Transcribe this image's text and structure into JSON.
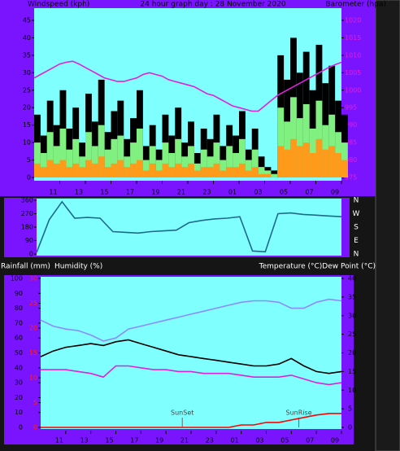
{
  "chart_data": [
    {
      "type": "bar",
      "title": "24 hour graph day : 28 November 2020",
      "ylabel": "Windspeed (kph)",
      "y2label": "Barometer (hpa)",
      "x": [
        0,
        0.5,
        1,
        1.5,
        2,
        2.5,
        3,
        3.5,
        4,
        4.5,
        5,
        5.5,
        6,
        6.5,
        7,
        7.5,
        8,
        8.5,
        9,
        9.5,
        10,
        10.5,
        11,
        11.5,
        12,
        12.5,
        13,
        13.5,
        14,
        14.5,
        15,
        15.5,
        16,
        16.5,
        17,
        17.5,
        18,
        18.5,
        19,
        19.5,
        20,
        20.5,
        21,
        21.5,
        22,
        22.5,
        23,
        23.5,
        24
      ],
      "xlim": [
        0,
        24
      ],
      "xticks": [
        {
          "value": 2,
          "label": "11"
        },
        {
          "value": 4,
          "label": "13"
        },
        {
          "value": 6,
          "label": "15"
        },
        {
          "value": 8,
          "label": "17"
        },
        {
          "value": 10,
          "label": "19"
        },
        {
          "value": 12,
          "label": "21"
        },
        {
          "value": 14,
          "label": "23"
        },
        {
          "value": 16,
          "label": "01"
        },
        {
          "value": 18,
          "label": "03"
        },
        {
          "value": 20,
          "label": "05"
        },
        {
          "value": 22,
          "label": "07"
        },
        {
          "value": 24,
          "label": "09"
        }
      ],
      "ylim": [
        0,
        45
      ],
      "yticks": [
        0,
        5,
        10,
        15,
        20,
        25,
        30,
        35,
        40,
        45
      ],
      "y2lim": [
        975,
        1020
      ],
      "y2ticks": [
        975,
        980,
        985,
        990,
        995,
        1000,
        1005,
        1010,
        1015,
        1020
      ],
      "series": [
        {
          "color": "#000000",
          "values": [
            18,
            12,
            22,
            15,
            25,
            14,
            20,
            10,
            24,
            16,
            28,
            13,
            19,
            22,
            11,
            17,
            25,
            9,
            15,
            8,
            18,
            12,
            20,
            10,
            16,
            7,
            14,
            11,
            18,
            9,
            15,
            12,
            19,
            8,
            14,
            6,
            3,
            2,
            35,
            28,
            40,
            30,
            36,
            25,
            38,
            27,
            32,
            22,
            18
          ]
        },
        {
          "color": "#80f080",
          "values": [
            10,
            7,
            13,
            9,
            14,
            8,
            11,
            6,
            13,
            9,
            15,
            8,
            11,
            12,
            6,
            10,
            14,
            5,
            9,
            5,
            10,
            7,
            11,
            6,
            9,
            4,
            8,
            6,
            10,
            5,
            9,
            7,
            11,
            5,
            8,
            3,
            2,
            1,
            20,
            16,
            23,
            17,
            21,
            14,
            22,
            15,
            18,
            13,
            10
          ]
        },
        {
          "color": "#ff9a1a",
          "values": [
            4,
            3,
            5,
            4,
            5,
            3,
            4,
            3,
            5,
            4,
            6,
            3,
            4,
            5,
            3,
            4,
            5,
            2,
            4,
            2,
            4,
            3,
            4,
            3,
            4,
            2,
            3,
            3,
            4,
            2,
            3,
            3,
            4,
            2,
            3,
            1,
            1,
            0,
            9,
            8,
            11,
            9,
            10,
            7,
            11,
            8,
            9,
            7,
            5
          ]
        },
        {
          "type": "line",
          "axis": "y2",
          "color": "#e020e0",
          "values": [
            1003.5,
            1004.5,
            1005.5,
            1006.5,
            1007.5,
            1008,
            1008.3,
            1007.5,
            1006.5,
            1005.5,
            1004.5,
            1003.5,
            1003,
            1002.5,
            1002.5,
            1003,
            1003.5,
            1004.5,
            1005,
            1004.5,
            1004,
            1003,
            1002.5,
            1002,
            1001.5,
            1001,
            1000,
            999,
            998.5,
            997.5,
            996.5,
            995.5,
            995,
            994.5,
            994,
            994,
            995.5,
            997,
            998.5,
            999.5,
            1000.5,
            1001.5,
            1002.5,
            1003.5,
            1004.5,
            1005.5,
            1006.5,
            1007.3,
            1008
          ]
        }
      ]
    },
    {
      "type": "line",
      "x": [
        0,
        1,
        2,
        3,
        4,
        5,
        6,
        7,
        8,
        9,
        10,
        11,
        12,
        13,
        14,
        15,
        16,
        17,
        18,
        19,
        20,
        21,
        22,
        23,
        24
      ],
      "xlim": [
        0,
        24
      ],
      "ylim": [
        0,
        360
      ],
      "yticks": [
        0,
        90,
        180,
        270,
        360
      ],
      "compass": [
        {
          "value": 360,
          "label": "N"
        },
        {
          "value": 270,
          "label": "W"
        },
        {
          "value": 180,
          "label": "S"
        },
        {
          "value": 90,
          "label": "E"
        },
        {
          "value": 0,
          "label": "N"
        }
      ],
      "series": [
        {
          "color": "#1f6a8a",
          "values": [
            10,
            230,
            350,
            240,
            245,
            240,
            150,
            145,
            140,
            150,
            155,
            160,
            210,
            225,
            235,
            240,
            250,
            20,
            15,
            270,
            275,
            265,
            260,
            255,
            250
          ]
        }
      ]
    },
    {
      "type": "line",
      "ylabel": "Humidity (%)",
      "y3label": "Rainfall (mm)",
      "y2label": "Temperature (°C)Dew Point (°C)",
      "x": [
        0,
        1,
        2,
        3,
        4,
        5,
        6,
        7,
        8,
        9,
        10,
        11,
        12,
        13,
        14,
        15,
        16,
        17,
        18,
        19,
        20,
        21,
        22,
        23,
        24
      ],
      "xlim": [
        0,
        24
      ],
      "xticks": [
        {
          "value": 2,
          "label": "11"
        },
        {
          "value": 4,
          "label": "13"
        },
        {
          "value": 6,
          "label": "15"
        },
        {
          "value": 8,
          "label": "17"
        },
        {
          "value": 10,
          "label": "19"
        },
        {
          "value": 12,
          "label": "21"
        },
        {
          "value": 14,
          "label": "23"
        },
        {
          "value": 16,
          "label": "01"
        },
        {
          "value": 18,
          "label": "03"
        },
        {
          "value": 20,
          "label": "05"
        },
        {
          "value": 22,
          "label": "07"
        },
        {
          "value": 24,
          "label": "09"
        }
      ],
      "ylim": [
        0,
        100
      ],
      "yticks": [
        0,
        10,
        20,
        30,
        40,
        50,
        60,
        70,
        80,
        90,
        100
      ],
      "y2lim": [
        0,
        40
      ],
      "y2ticks": [
        0,
        5,
        10,
        15,
        20,
        25,
        30,
        35,
        40
      ],
      "y3lim": [
        0,
        30
      ],
      "y3ticks": [
        0,
        5,
        10,
        15,
        20,
        25,
        30
      ],
      "annotations": [
        {
          "text": "SunSet",
          "x": 11.3
        },
        {
          "text": "SunRise",
          "x": 20.6
        }
      ],
      "series": [
        {
          "color": "#8c8cff",
          "values": [
            72,
            68,
            66,
            65,
            62,
            58,
            60,
            66,
            68,
            70,
            72,
            74,
            76,
            78,
            80,
            82,
            84,
            85,
            85,
            84,
            80,
            80,
            84,
            86,
            85
          ]
        },
        {
          "axis": "y2",
          "color": "#000000",
          "values": [
            19,
            20.5,
            21.5,
            22,
            22.5,
            22,
            23,
            23.5,
            22.5,
            21.5,
            20.5,
            19.5,
            19,
            18.5,
            18,
            17.5,
            17,
            16.5,
            16.5,
            17,
            18.5,
            16.5,
            15,
            14.5,
            15
          ]
        },
        {
          "axis": "y2",
          "color": "#e020e0",
          "values": [
            15.5,
            15.5,
            15.5,
            15,
            14.5,
            13.5,
            16.5,
            16.5,
            16,
            15.5,
            15.5,
            15,
            15,
            14.5,
            14.5,
            14.5,
            14,
            13.5,
            13.5,
            13.5,
            14,
            13,
            12,
            11.5,
            12
          ]
        },
        {
          "axis": "y3",
          "color": "#ff0000",
          "values": [
            0,
            0,
            0,
            0,
            0,
            0,
            0,
            0,
            0,
            0,
            0,
            0,
            0,
            0,
            0,
            0,
            0.5,
            0.5,
            1,
            1,
            1.5,
            2,
            2.5,
            2.8,
            2.8
          ]
        }
      ]
    }
  ]
}
